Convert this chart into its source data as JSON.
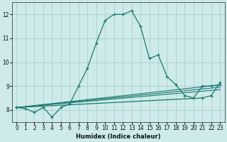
{
  "xlabel": "Humidex (Indice chaleur)",
  "background_color": "#ceeaea",
  "grid_color": "#aacfcf",
  "line_color": "#1a7a6e",
  "xlim": [
    -0.5,
    23.5
  ],
  "ylim": [
    7.5,
    12.5
  ],
  "yticks": [
    8,
    9,
    10,
    11,
    12
  ],
  "xticks": [
    0,
    1,
    2,
    3,
    4,
    5,
    6,
    7,
    8,
    9,
    10,
    11,
    12,
    13,
    14,
    15,
    16,
    17,
    18,
    19,
    20,
    21,
    22,
    23
  ],
  "lines": [
    {
      "x": [
        0,
        1,
        2,
        3,
        4,
        5,
        6,
        7,
        8,
        9,
        10,
        11,
        12,
        13,
        14,
        15,
        16,
        17,
        18,
        19,
        20,
        21,
        22,
        23
      ],
      "y": [
        8.1,
        8.05,
        7.9,
        8.1,
        7.7,
        8.1,
        8.25,
        9.0,
        9.75,
        10.8,
        11.75,
        12.0,
        12.0,
        12.15,
        11.5,
        10.15,
        10.3,
        9.4,
        9.05,
        8.6,
        8.5,
        9.0,
        9.0,
        9.05
      ],
      "has_markers": true
    },
    {
      "x": [
        0,
        23
      ],
      "y": [
        8.1,
        8.85
      ],
      "has_markers": false
    },
    {
      "x": [
        0,
        23
      ],
      "y": [
        8.1,
        8.95
      ],
      "has_markers": false
    },
    {
      "x": [
        0,
        23
      ],
      "y": [
        8.1,
        9.05
      ],
      "has_markers": false
    },
    {
      "x": [
        0,
        21,
        22,
        23
      ],
      "y": [
        8.1,
        8.5,
        8.6,
        9.15
      ],
      "has_markers": true
    }
  ]
}
